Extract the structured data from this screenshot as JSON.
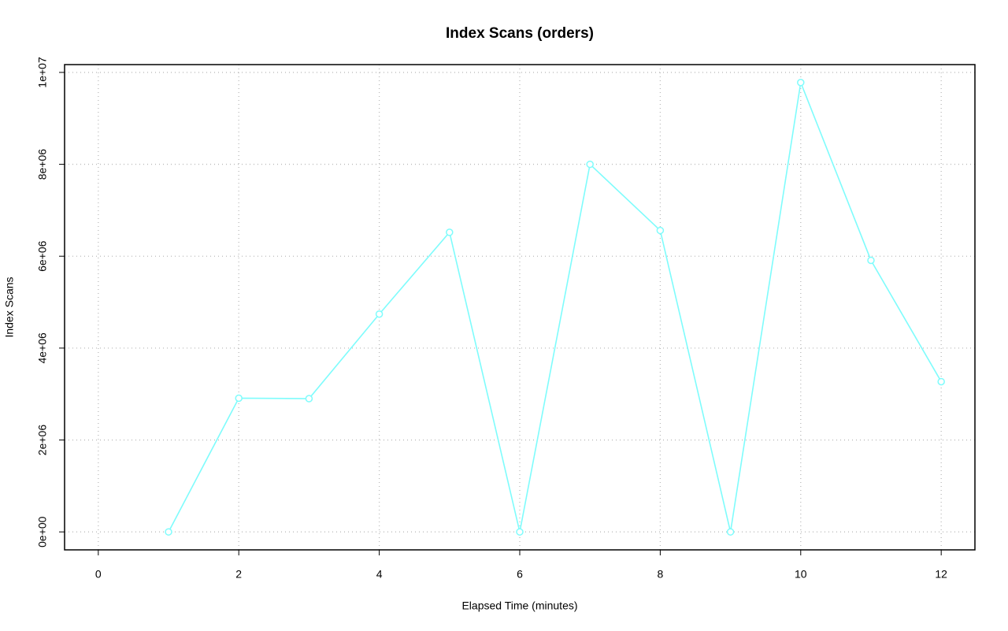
{
  "chart_data": {
    "type": "line",
    "title": "Index Scans (orders)",
    "x_label": "Elapsed Time (minutes)",
    "y_label": "Index Scans",
    "x": [
      1,
      2,
      3,
      4,
      5,
      6,
      7,
      8,
      9,
      10,
      11,
      12
    ],
    "series": [
      {
        "name": "Index Scans",
        "color": "#7ffcfc",
        "values": [
          0,
          2910000,
          2900000,
          4740000,
          6520000,
          0,
          8000000,
          6560000,
          0,
          9780000,
          5910000,
          3270000
        ]
      }
    ],
    "xlim": [
      -0.48,
      12.48
    ],
    "xticks": [
      0,
      2,
      4,
      6,
      8,
      10,
      12
    ],
    "ylim": [
      -391000,
      10170000
    ],
    "yticks": [
      {
        "value": 0,
        "label": "0e+00"
      },
      {
        "value": 2000000,
        "label": "2e+06"
      },
      {
        "value": 4000000,
        "label": "4e+06"
      },
      {
        "value": 6000000,
        "label": "6e+06"
      },
      {
        "value": 8000000,
        "label": "8e+06"
      },
      {
        "value": 10000000,
        "label": "1e+07"
      }
    ],
    "grid": true
  }
}
